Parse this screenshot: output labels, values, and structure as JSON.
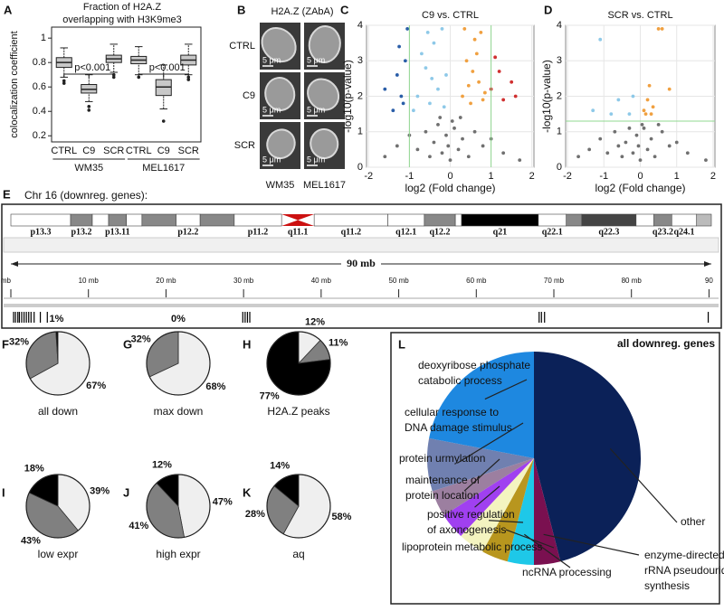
{
  "A": {
    "letter": "A",
    "title_lines": [
      "Fraction of H2A.Z",
      "overlapping with H3K9me3"
    ],
    "ylabel": "colocalization coefficient",
    "categories": [
      "CTRL",
      "C9",
      "SCR",
      "CTRL",
      "C9",
      "SCR"
    ],
    "groups": [
      "WM35",
      "MEL1617"
    ],
    "annotations": [
      "p<0.001",
      "p<0.001"
    ],
    "ylim": [
      0.15,
      1.09
    ],
    "yticks": [
      0.2,
      0.4,
      0.6,
      0.8,
      1
    ],
    "color": "#c8c8c8",
    "boxes": [
      {
        "whisker_low": 0.68,
        "q1": 0.76,
        "median": 0.8,
        "q3": 0.84,
        "whisker_high": 0.92,
        "outliers": [
          0.65,
          0.63
        ]
      },
      {
        "whisker_low": 0.48,
        "q1": 0.55,
        "median": 0.58,
        "q3": 0.62,
        "whisker_high": 0.7,
        "outliers": [
          0.44,
          0.41
        ]
      },
      {
        "whisker_low": 0.72,
        "q1": 0.8,
        "median": 0.83,
        "q3": 0.86,
        "whisker_high": 0.95,
        "outliers": [
          0.7,
          0.68
        ]
      },
      {
        "whisker_low": 0.7,
        "q1": 0.79,
        "median": 0.82,
        "q3": 0.85,
        "whisker_high": 0.93,
        "outliers": [
          0.68
        ]
      },
      {
        "whisker_low": 0.42,
        "q1": 0.53,
        "median": 0.6,
        "q3": 0.66,
        "whisker_high": 0.78,
        "outliers": [
          0.32
        ]
      },
      {
        "whisker_low": 0.7,
        "q1": 0.78,
        "median": 0.82,
        "q3": 0.86,
        "whisker_high": 0.95,
        "outliers": [
          0.68,
          0.66
        ]
      }
    ]
  },
  "B": {
    "letter": "B",
    "title": "H2A.Z (ZAbA)",
    "rows": [
      "CTRL",
      "C9",
      "SCR"
    ],
    "columns": [
      "WM35",
      "MEL1617"
    ],
    "scale_bar": "5 μm"
  },
  "C": {
    "letter": "C",
    "type": "scatter",
    "title": "C9 vs. CTRL",
    "xlabel": "log2 (Fold change)",
    "ylabel": "-log10(p-value)",
    "xlim": [
      -2.05,
      2.05
    ],
    "ylim": [
      0,
      4
    ],
    "xticks": [
      -2,
      -1,
      0,
      1,
      2
    ],
    "yticks": [
      0,
      1,
      2,
      3,
      4
    ],
    "grid": true,
    "threshold_color": "#90d890",
    "vthresholds": [
      -1,
      1
    ],
    "hthresholds": [],
    "series": [
      {
        "color": "#707070",
        "x": [
          -1.6,
          -1.3,
          -1.0,
          -0.8,
          -0.6,
          -0.5,
          -0.4,
          -0.3,
          -0.2,
          -0.1,
          0,
          0.1,
          0.2,
          0.3,
          0.45,
          0.6,
          0.8,
          1.0,
          1.3,
          1.7,
          -0.05,
          0.05,
          0.25,
          -0.25
        ],
        "values": [
          0.3,
          0.6,
          0.9,
          0.5,
          1.0,
          0.3,
          0.7,
          1.2,
          0.4,
          0.9,
          0.2,
          1.1,
          0.5,
          0.8,
          0.3,
          1.0,
          0.6,
          0.8,
          0.4,
          0.2,
          0.6,
          1.3,
          1.4,
          1.4
        ]
      },
      {
        "color": "#8ec9e8",
        "x": [
          -0.8,
          -0.6,
          -0.5,
          -0.4,
          -0.3,
          -0.2,
          -0.7,
          -0.15,
          -0.9,
          -0.45,
          -0.55,
          -0.1
        ],
        "values": [
          2.0,
          2.8,
          1.8,
          3.5,
          2.2,
          3.9,
          3.2,
          1.7,
          1.6,
          2.5,
          3.8,
          2.6
        ]
      },
      {
        "color": "#2a5ea8",
        "x": [
          -1.2,
          -1.1,
          -1.4,
          -1.3,
          -1.05,
          -1.6,
          -1.15,
          -1.25
        ],
        "values": [
          2.0,
          3.0,
          1.6,
          2.6,
          3.9,
          2.2,
          1.8,
          3.4
        ]
      },
      {
        "color": "#f0a040",
        "x": [
          0.3,
          0.4,
          0.5,
          0.6,
          0.7,
          0.8,
          0.35,
          0.55,
          0.65,
          0.45,
          0.75,
          0.85
        ],
        "values": [
          2.0,
          3.0,
          1.8,
          3.6,
          2.4,
          1.9,
          3.9,
          2.7,
          3.2,
          2.3,
          3.8,
          2.1
        ]
      },
      {
        "color": "#d03030",
        "x": [
          1.0,
          1.1,
          1.3,
          1.5,
          1.2,
          1.6
        ],
        "values": [
          2.2,
          3.1,
          1.9,
          2.4,
          2.7,
          2.0
        ]
      }
    ]
  },
  "D": {
    "letter": "D",
    "type": "scatter",
    "title": "SCR vs. CTRL",
    "xlabel": "log2 (Fold change)",
    "ylabel": "-log10(p-value)",
    "xlim": [
      -2.05,
      2.05
    ],
    "ylim": [
      0,
      4
    ],
    "xticks": [
      -2,
      -1,
      0,
      1,
      2
    ],
    "yticks": [
      0,
      1,
      2,
      3,
      4
    ],
    "grid": true,
    "threshold_color": "#90d890",
    "vthresholds": [],
    "hthresholds": [
      1.3
    ],
    "series": [
      {
        "color": "#707070",
        "x": [
          -1.7,
          -1.4,
          -1.1,
          -0.9,
          -0.7,
          -0.5,
          -0.4,
          -0.3,
          -0.2,
          -0.1,
          0,
          0.1,
          0.2,
          0.3,
          0.4,
          0.6,
          0.8,
          1.0,
          1.3,
          1.8,
          -0.05,
          0.05,
          0.5,
          -0.6
        ],
        "values": [
          0.3,
          0.5,
          0.8,
          0.4,
          1.0,
          0.3,
          0.7,
          1.1,
          0.4,
          0.9,
          0.2,
          1.1,
          0.5,
          0.8,
          0.3,
          1.0,
          0.6,
          0.7,
          0.4,
          0.2,
          0.6,
          1.2,
          1.2,
          0.6
        ]
      },
      {
        "color": "#8ec9e8",
        "x": [
          -1.3,
          -1.1,
          -0.6,
          -0.3,
          -0.2,
          -0.8
        ],
        "values": [
          1.6,
          3.6,
          1.9,
          1.5,
          2.0,
          1.5
        ]
      },
      {
        "color": "#f0a040",
        "x": [
          0.1,
          0.2,
          0.3,
          0.25,
          0.35,
          0.5,
          0.8,
          0.15,
          0.6
        ],
        "values": [
          1.6,
          1.9,
          1.5,
          2.3,
          1.7,
          3.9,
          2.2,
          1.5,
          3.9
        ]
      }
    ]
  },
  "E": {
    "letter": "E",
    "title": "Chr 16 (downreg. genes):",
    "span_label": "90 mb",
    "xlim": [
      0,
      90.3
    ],
    "xticks": [
      {
        "value": 0,
        "label": "mb"
      },
      {
        "value": 10,
        "label": "10 mb"
      },
      {
        "value": 20,
        "label": "20 mb"
      },
      {
        "value": 30,
        "label": "30 mb"
      },
      {
        "value": 40,
        "label": "40 mb"
      },
      {
        "value": 50,
        "label": "50 mb"
      },
      {
        "value": 60,
        "label": "60 mb"
      },
      {
        "value": 70,
        "label": "70 mb"
      },
      {
        "value": 80,
        "label": "80 mb"
      },
      {
        "value": 90,
        "label": "90"
      }
    ],
    "bands": [
      {
        "start": 0,
        "end": 7.7,
        "color": "#ffffff",
        "label": "p13.3"
      },
      {
        "start": 7.7,
        "end": 10.5,
        "color": "#888888",
        "label": "p13.2"
      },
      {
        "start": 10.5,
        "end": 12.6,
        "color": "#ffffff",
        "label": null
      },
      {
        "start": 12.6,
        "end": 14.9,
        "color": "#888888",
        "label": "p13.11"
      },
      {
        "start": 14.9,
        "end": 16.9,
        "color": "#ffffff",
        "label": null
      },
      {
        "start": 16.9,
        "end": 21.3,
        "color": "#888888",
        "label": null
      },
      {
        "start": 21.3,
        "end": 24.4,
        "color": "#ffffff",
        "label": "p12.2"
      },
      {
        "start": 24.4,
        "end": 28.8,
        "color": "#888888",
        "label": null
      },
      {
        "start": 28.8,
        "end": 34.9,
        "color": "#ffffff",
        "label": "p11.2"
      },
      {
        "start": 34.9,
        "end": 39.1,
        "color": "#cc1111",
        "label": "q11.1",
        "centromere": true
      },
      {
        "start": 39.1,
        "end": 48.6,
        "color": "#ffffff",
        "label": "q11.2"
      },
      {
        "start": 48.6,
        "end": 53.3,
        "color": "#ffffff",
        "label": "q12.1"
      },
      {
        "start": 53.3,
        "end": 57.3,
        "color": "#888888",
        "label": "q12.2"
      },
      {
        "start": 57.3,
        "end": 58.1,
        "color": "#ffffff",
        "label": null
      },
      {
        "start": 58.1,
        "end": 68.0,
        "color": "#000000",
        "label": "q21"
      },
      {
        "start": 68.0,
        "end": 71.6,
        "color": "#ffffff",
        "label": "q22.1"
      },
      {
        "start": 71.6,
        "end": 73.6,
        "color": "#888888",
        "label": null
      },
      {
        "start": 73.6,
        "end": 80.6,
        "color": "#444444",
        "label": "q22.3"
      },
      {
        "start": 80.6,
        "end": 82.9,
        "color": "#ffffff",
        "label": null
      },
      {
        "start": 82.9,
        "end": 85.2,
        "color": "#888888",
        "label": "q23.2"
      },
      {
        "start": 85.2,
        "end": 88.4,
        "color": "#ffffff",
        "label": "q24.1"
      },
      {
        "start": 88.4,
        "end": 90.3,
        "color": "#bbbbbb",
        "label": null
      }
    ],
    "genes": [
      0.35,
      0.6,
      0.9,
      1.1,
      1.4,
      1.7,
      2.0,
      2.3,
      2.6,
      3.0,
      3.8,
      4.7,
      29.9,
      30.2,
      30.5,
      30.8,
      68.1,
      68.4,
      68.8,
      89.9
    ]
  },
  "pie_colors": [
    "#efefef",
    "#808080",
    "#000000"
  ],
  "F": {
    "letter": "F",
    "type": "pie",
    "caption": "all down",
    "values": [
      67,
      32,
      1
    ],
    "value_labels": [
      "67%",
      "32%",
      "1%"
    ]
  },
  "G": {
    "letter": "G",
    "type": "pie",
    "caption": "max down",
    "values": [
      68,
      32,
      0
    ],
    "value_labels": [
      "68%",
      "32%",
      "0%"
    ]
  },
  "H": {
    "letter": "H",
    "type": "pie",
    "caption": "H2A.Z peaks",
    "values": [
      12,
      11,
      77
    ],
    "value_labels": [
      "12%",
      "11%",
      "77%"
    ]
  },
  "I": {
    "letter": "I",
    "type": "pie",
    "caption": "low expr",
    "values": [
      39,
      43,
      18
    ],
    "value_labels": [
      "39%",
      "43%",
      "18%"
    ]
  },
  "J": {
    "letter": "J",
    "type": "pie",
    "caption": "high expr",
    "values": [
      47,
      41,
      12
    ],
    "value_labels": [
      "47%",
      "41%",
      "12%"
    ]
  },
  "K": {
    "letter": "K",
    "type": "pie",
    "caption": "aq",
    "values": [
      58,
      28,
      14
    ],
    "value_labels": [
      "58%",
      "28%",
      "14%"
    ]
  },
  "L": {
    "letter": "L",
    "type": "pie",
    "title": "all downreg. genes",
    "labels": [
      [
        "other"
      ],
      [
        "enzyme-directed",
        "rRNA pseudouridine",
        "synthesis"
      ],
      [
        "ncRNA processing"
      ],
      [
        "lipoprotein metabolic process"
      ],
      [
        "positive regulation",
        "of axonogenesis"
      ],
      [
        "maintenance of",
        "protein location"
      ],
      [
        "protein urmylation"
      ],
      [
        "cellular response to",
        "DNA damage stimulus"
      ],
      [
        "deoxyribose phosphate",
        "catabolic process"
      ]
    ],
    "values": [
      46,
      4,
      4,
      4,
      4,
      4,
      4,
      8,
      22
    ],
    "colors": [
      "#0b2158",
      "#7a1050",
      "#1ec8e8",
      "#b8961e",
      "#f4f4c0",
      "#a040f0",
      "#9c7fa0",
      "#7080b0",
      "#1e88e0"
    ]
  }
}
